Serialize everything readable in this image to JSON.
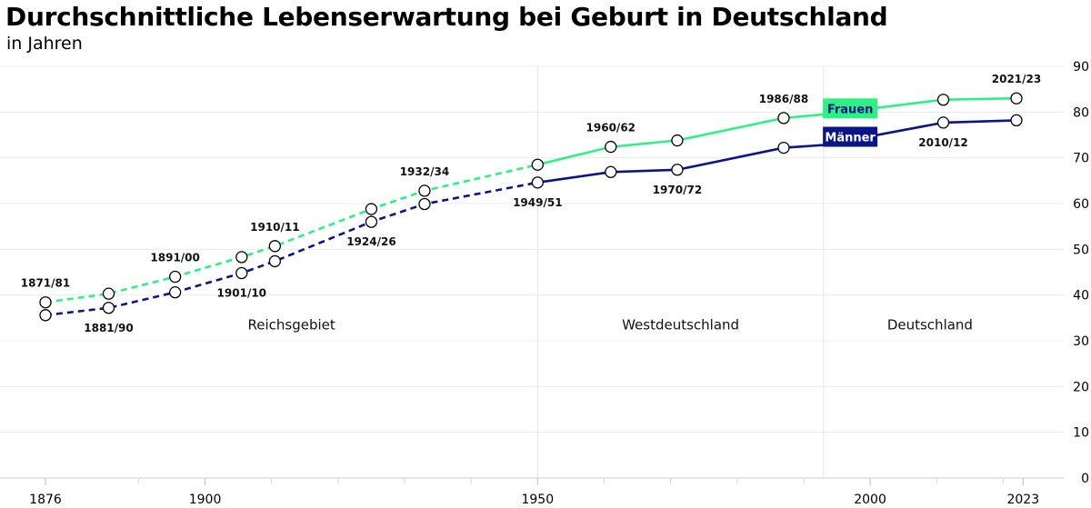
{
  "chart_data": {
    "type": "line",
    "title": "Durchschnittliche Lebenserwartung bei Geburt in Deutschland",
    "subtitle": "in Jahren",
    "xlim": [
      1876,
      2025
    ],
    "ylim": [
      0,
      90
    ],
    "yticks": [
      0,
      10,
      20,
      30,
      40,
      50,
      60,
      70,
      80,
      90
    ],
    "xticks": [
      {
        "value": 1876,
        "label": "1876"
      },
      {
        "value": 1900,
        "label": "1900"
      },
      {
        "value": 1950,
        "label": "1950"
      },
      {
        "value": 2000,
        "label": "2000"
      },
      {
        "value": 2023,
        "label": "2023"
      }
    ],
    "minor_xticks": [
      1890,
      1910,
      1920,
      1930,
      1940,
      1960,
      1970,
      1980,
      1990,
      2010,
      2020
    ],
    "grid": "horizontal",
    "x": [
      1876,
      1885.5,
      1895.5,
      1905.5,
      1910.5,
      1925,
      1933,
      1950,
      1961,
      1971,
      1987,
      1993,
      2011,
      2022
    ],
    "series": [
      {
        "name": "Frauen",
        "color": "#2ff082",
        "values": [
          38.4,
          40.3,
          44.0,
          48.3,
          50.7,
          58.8,
          62.8,
          68.5,
          72.4,
          73.8,
          78.7,
          79.5,
          82.7,
          83.0
        ]
      },
      {
        "name": "Männer",
        "color": "#0b1489",
        "values": [
          35.6,
          37.2,
          40.6,
          44.8,
          47.4,
          56.0,
          59.9,
          64.6,
          66.9,
          67.4,
          72.2,
          72.8,
          77.7,
          78.2
        ]
      }
    ],
    "dashed_until_x": 1950,
    "marker_indices": [
      0,
      1,
      2,
      3,
      4,
      5,
      6,
      7,
      8,
      9,
      10,
      12,
      13
    ],
    "point_labels": [
      {
        "text": "1871/81",
        "x": 1876,
        "series": 0,
        "position": "above"
      },
      {
        "text": "1881/90",
        "x": 1885.5,
        "series": 1,
        "position": "below"
      },
      {
        "text": "1891/00",
        "x": 1895.5,
        "series": 0,
        "position": "above"
      },
      {
        "text": "1901/10",
        "x": 1905.5,
        "series": 1,
        "position": "below"
      },
      {
        "text": "1910/11",
        "x": 1910.5,
        "series": 0,
        "position": "above"
      },
      {
        "text": "1924/26",
        "x": 1925,
        "series": 1,
        "position": "below"
      },
      {
        "text": "1932/34",
        "x": 1933,
        "series": 0,
        "position": "above"
      },
      {
        "text": "1949/51",
        "x": 1950,
        "series": 1,
        "position": "below"
      },
      {
        "text": "1960/62",
        "x": 1961,
        "series": 0,
        "position": "above"
      },
      {
        "text": "1970/72",
        "x": 1971,
        "series": 1,
        "position": "below"
      },
      {
        "text": "1986/88",
        "x": 1987,
        "series": 0,
        "position": "above"
      },
      {
        "text": "2010/12",
        "x": 2011,
        "series": 1,
        "position": "below"
      },
      {
        "text": "2021/23",
        "x": 2022,
        "series": 0,
        "position": "above"
      }
    ],
    "regions": [
      {
        "label": "Reichsgebiet",
        "from": 1876,
        "to": 1950
      },
      {
        "label": "Westdeutschland",
        "from": 1950,
        "to": 1993
      },
      {
        "label": "Deutschland",
        "from": 1993,
        "to": 2025
      }
    ],
    "region_label_y": 33.5,
    "legend": [
      {
        "label": "Frauen",
        "series": 0,
        "text_color": "#0b1489",
        "x": 1997,
        "y": 80.8
      },
      {
        "label": "Männer",
        "series": 1,
        "text_color": "#ffffff",
        "x": 1997,
        "y": 74.6
      }
    ]
  }
}
